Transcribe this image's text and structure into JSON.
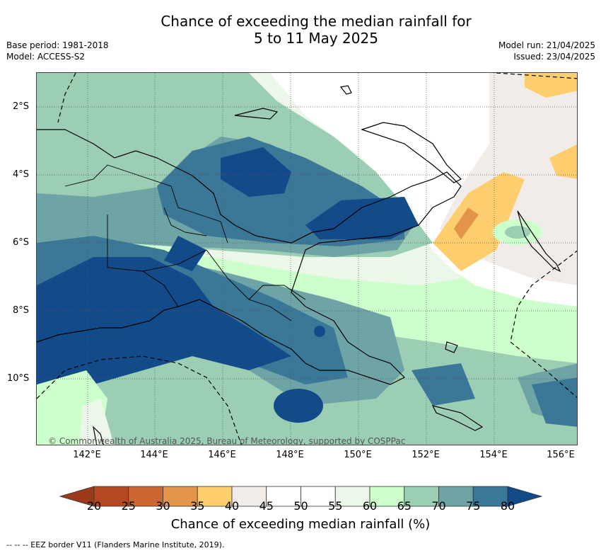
{
  "title": {
    "line1": "Chance of exceeding the median rainfall for",
    "line2": "5 to 11 May 2025"
  },
  "meta": {
    "base_period": "Base period: 1981-2018",
    "model": "Model: ACCESS-S2",
    "model_run": "Model run: 21/04/2025",
    "issued": "Issued: 23/04/2025"
  },
  "map": {
    "copyright": "© Commonwealth of Australia 2025, Bureau of Meteorology, supported by COSPPac",
    "lat_labels": [
      "2°S",
      "4°S",
      "6°S",
      "8°S",
      "10°S"
    ],
    "lon_labels": [
      "142°E",
      "144°E",
      "146°E",
      "148°E",
      "150°E",
      "152°E",
      "154°E",
      "156°E"
    ]
  },
  "colorbar": {
    "ticks": [
      "20",
      "25",
      "30",
      "35",
      "40",
      "45",
      "50",
      "55",
      "60",
      "65",
      "70",
      "75",
      "80"
    ],
    "colors": [
      "#b44a23",
      "#cb6632",
      "#e3934a",
      "#fdcd6e",
      "#f2ece8",
      "#ffffff",
      "#ffffff",
      "#ecf6ea",
      "#ccffcc",
      "#9cceb5",
      "#6ea4a6",
      "#3b7898",
      "#124a8a"
    ],
    "title": "Chance of exceeding median rainfall (%)"
  },
  "legend_note": "--  --  -- EEZ border V11 (Flanders Marine Institute, 2019)."
}
